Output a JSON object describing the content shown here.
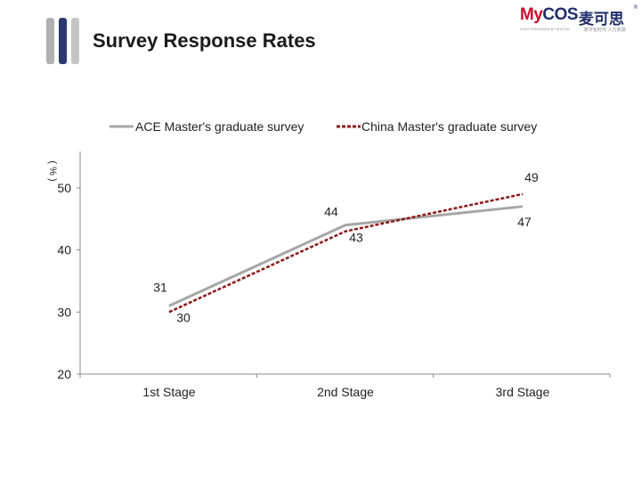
{
  "header": {
    "title": "Survey Response Rates",
    "logo": {
      "latin_my": "My",
      "latin_cos": "COS",
      "chinese": "麦可思",
      "registered": "®",
      "tagline_en": "LOGO PROVIDED BY MYCOS",
      "tagline_cn": "数字化时代·人力资源"
    },
    "accent_colors": [
      "#a8a8a8",
      "#2b3a6b"
    ]
  },
  "chart_data": {
    "type": "line",
    "categories": [
      "1st Stage",
      "2nd Stage",
      "3rd Stage"
    ],
    "series": [
      {
        "name": "ACE Master's graduate survey",
        "values": [
          31,
          44,
          47
        ],
        "labels": [
          "31",
          "44",
          "47"
        ],
        "color": "#a6a6a6",
        "style": "solid"
      },
      {
        "name": "China Master's graduate survey",
        "values": [
          30,
          43,
          49
        ],
        "labels": [
          "30",
          "43",
          "49"
        ],
        "color": "#8b1a1a",
        "style": "dashed"
      }
    ],
    "yticks": [
      20,
      30,
      40,
      50
    ],
    "ylim": [
      20,
      53
    ],
    "ylabel": "( % )",
    "legend": "top",
    "grid": false
  }
}
